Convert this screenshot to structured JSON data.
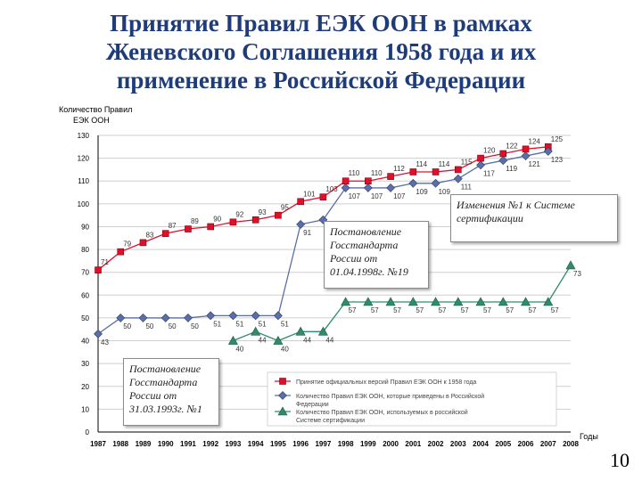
{
  "title_lines": [
    "Принятие Правил ЕЭК ООН в рамках",
    "Женевского Соглашения 1958 года и их",
    "применение в Российской Федерации"
  ],
  "page_number": "10",
  "callouts": {
    "c1": "Постановление Госстандарта России от 01.04.1998г. №19",
    "c2": "Изменения №1 к Системе сертификации",
    "c3": "Постановление Госстандарта России от 31.03.1993г. №1"
  },
  "colors": {
    "title": "#1f3c7a",
    "series_red": "#e0102a",
    "series_blue": "#5a6fa8",
    "series_green": "#2e8b6e",
    "grid": "#cfcfcf"
  },
  "chart_data": {
    "type": "line",
    "ylabel": "Количество Правил ЕЭК ООН",
    "xlabel": "Годы",
    "ylim": [
      0,
      130
    ],
    "yticks": [
      0,
      10,
      20,
      30,
      40,
      50,
      60,
      70,
      80,
      90,
      100,
      110,
      120,
      130
    ],
    "categories": [
      "1987",
      "1988",
      "1989",
      "1990",
      "1991",
      "1992",
      "1993",
      "1994",
      "1995",
      "1996",
      "1997",
      "1998",
      "1999",
      "2000",
      "2001",
      "2002",
      "2003",
      "2004",
      "2005",
      "2006",
      "2007",
      "2008"
    ],
    "series": [
      {
        "name": "Принятие официальных версий Правил ЕЭК ООН к 1958 года",
        "color": "#e0102a",
        "marker": "square",
        "values": [
          71,
          79,
          83,
          87,
          89,
          90,
          92,
          93,
          95,
          101,
          103,
          110,
          110,
          112,
          114,
          114,
          115,
          120,
          122,
          124,
          125,
          null
        ]
      },
      {
        "name": "Количество Правил ЕЭК ООН, которые приведены в Российской Федерации",
        "color": "#5a6fa8",
        "marker": "diamond",
        "values": [
          43,
          50,
          50,
          50,
          50,
          51,
          51,
          51,
          51,
          91,
          93,
          107,
          107,
          107,
          109,
          109,
          111,
          117,
          119,
          121,
          123,
          null
        ]
      },
      {
        "name": "Количество Правил ЕЭК ООН, используемых в российской Системе сертификации",
        "color": "#2e8b6e",
        "marker": "triangle",
        "values": [
          null,
          null,
          null,
          null,
          null,
          null,
          40,
          44,
          40,
          44,
          44,
          57,
          57,
          57,
          57,
          57,
          57,
          57,
          57,
          57,
          57,
          73
        ]
      }
    ]
  }
}
